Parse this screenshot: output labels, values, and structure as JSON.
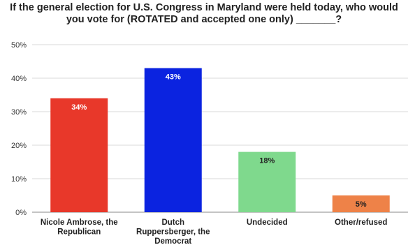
{
  "chart_data": {
    "type": "bar",
    "title_line1": "If the general election for U.S. Congress in Maryland were held today, who would",
    "title_line2": "you vote for (ROTATED and accepted one only) _______?",
    "categories": [
      [
        "Nicole Ambrose, the",
        "Republican"
      ],
      [
        "Dutch",
        "Ruppersberger, the",
        "Democrat"
      ],
      [
        "Undecided"
      ],
      [
        "Other/refused"
      ]
    ],
    "values": [
      34,
      43,
      18,
      5
    ],
    "data_labels": [
      "34%",
      "43%",
      "18%",
      "5%"
    ],
    "colors": [
      "#e8382a",
      "#0b23e0",
      "#7fd98d",
      "#ee8248"
    ],
    "label_colors": [
      "#ffffff",
      "#ffffff",
      "#222222",
      "#222222"
    ],
    "ylim": [
      0,
      50
    ],
    "yticks": [
      0,
      10,
      20,
      30,
      40,
      50
    ],
    "ytick_labels": [
      "0%",
      "10%",
      "20%",
      "30%",
      "40%",
      "50%"
    ],
    "grid": true,
    "xlabel": "",
    "ylabel": ""
  }
}
